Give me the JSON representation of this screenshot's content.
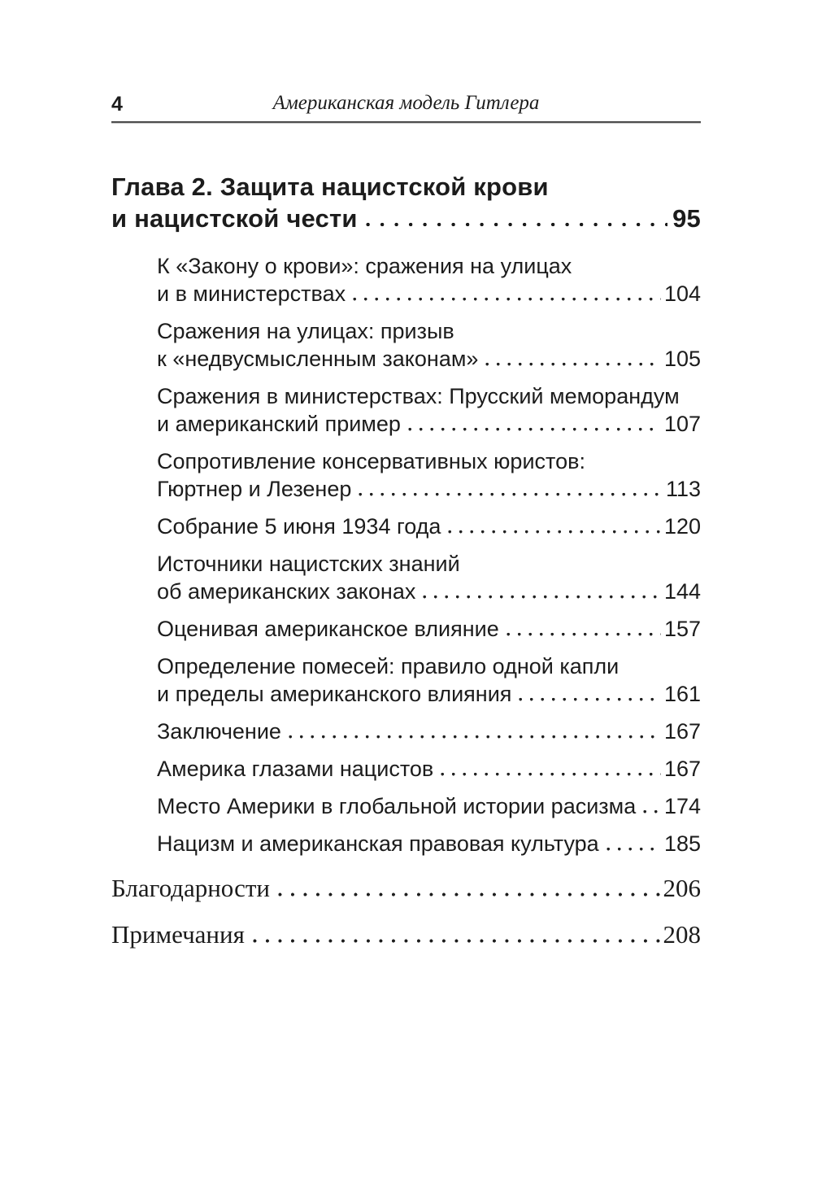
{
  "page": {
    "background": "#ffffff",
    "text_color": "#1c1c1c",
    "rule_dark": "#4d4d4d",
    "rule_light": "#c4c4c4"
  },
  "header": {
    "page_number": "4",
    "running_title": "Американская модель Гитлера"
  },
  "chapter": {
    "title_line1": "Глава 2. Защита нацистской крови",
    "title_line2": "и нацистской чести",
    "page": "95"
  },
  "entries": [
    {
      "line1": "К «Закону о крови»: сражения на улицах",
      "line2": "и в министерствах",
      "page": "104"
    },
    {
      "line1": "Сражения на улицах: призыв",
      "line2": "к «недвусмысленным законам»",
      "page": "105"
    },
    {
      "line1": "Сражения в министерствах: Прусский меморандум",
      "line2": "и американский пример",
      "page": "107"
    },
    {
      "line1": "Сопротивление консервативных юристов:",
      "line2": "Гюртнер и Лезенер",
      "page": "113"
    },
    {
      "line1": "Собрание 5 июня 1934 года",
      "page": "120"
    },
    {
      "line1": "Источники нацистских знаний",
      "line2": "об американских законах",
      "page": "144"
    },
    {
      "line1": "Оценивая американское влияние",
      "page": "157"
    },
    {
      "line1": "Определение помесей: правило одной капли",
      "line2": "и пределы американского влияния",
      "page": "161"
    },
    {
      "line1": "Заключение",
      "page": "167"
    },
    {
      "line1": "Америка глазами нацистов",
      "page": "167"
    },
    {
      "line1": "Место Америки в глобальной истории расизма",
      "page": "174"
    },
    {
      "line1": "Нацизм и американская правовая культура",
      "page": "185"
    }
  ],
  "back_matter": [
    {
      "label": "Благодарности",
      "page": "206"
    },
    {
      "label": "Примечания",
      "page": "208"
    }
  ]
}
